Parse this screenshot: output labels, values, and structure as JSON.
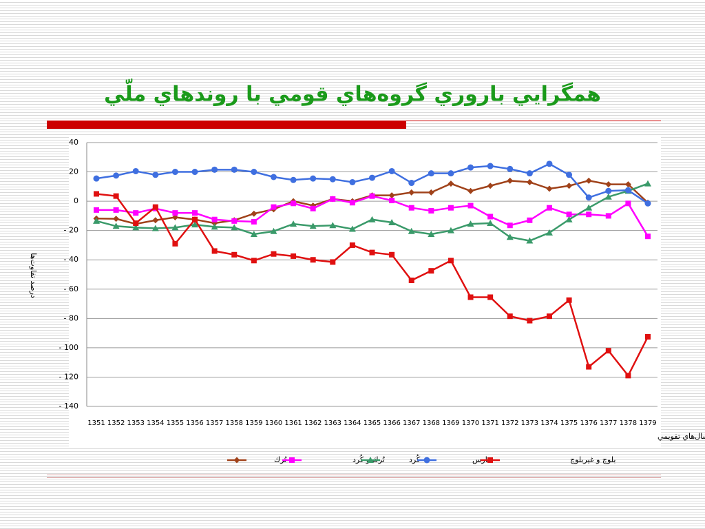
{
  "title": "همگرايي باروري گروه‌هاي قومي با روندهاي ملّي",
  "chart_data": {
    "type": "line",
    "x_label": "سال‌هاي تقويمي",
    "y_label": "درصد تفاوت‌ها",
    "categories": [
      "1351",
      "1352",
      "1353",
      "1354",
      "1355",
      "1356",
      "1357",
      "1358",
      "1359",
      "1360",
      "1361",
      "1362",
      "1363",
      "1364",
      "1365",
      "1366",
      "1367",
      "1368",
      "1369",
      "1370",
      "1371",
      "1372",
      "1373",
      "1374",
      "1375",
      "1376",
      "1377",
      "1378",
      "1379"
    ],
    "ylim": [
      -140,
      40
    ],
    "yticks": [
      40,
      20,
      0,
      {
        "value": -20,
        "label": "- 20"
      },
      {
        "value": -40,
        "label": "- 40"
      },
      {
        "value": -60,
        "label": "- 60"
      },
      {
        "value": -80,
        "label": "- 80"
      },
      {
        "value": -100,
        "label": "- 100"
      },
      {
        "value": -120,
        "label": "- 120"
      },
      {
        "value": -140,
        "label": "- 140"
      }
    ],
    "grid": true,
    "series": [
      {
        "name": "تُرك",
        "color": "#a0421a",
        "marker": "diamond",
        "values": [
          -11.8,
          -12,
          -15.5,
          -13,
          -11,
          -12.5,
          -15,
          -13,
          -8.5,
          -5.5,
          0,
          -3,
          1.5,
          0,
          4,
          4,
          6,
          6,
          12,
          7,
          10.5,
          14,
          13,
          8.5,
          10.5,
          14,
          11.5,
          11.5,
          -1
        ]
      },
      {
        "name": "تُرك و كُرد",
        "color": "#ff00ff",
        "marker": "square",
        "values": [
          -6,
          -6,
          -8,
          -5,
          -8,
          -8,
          -12.5,
          -13.5,
          -14,
          -4,
          -1.5,
          -5,
          1.5,
          -1,
          3.5,
          0.5,
          -4.5,
          -6.5,
          -4.5,
          -3,
          -10.5,
          -16.5,
          -13,
          -4.5,
          -9,
          -9,
          -10,
          -1.5,
          -24
        ]
      },
      {
        "name": "كُرد",
        "color": "#3a9a6a",
        "marker": "triangle",
        "values": [
          -13.5,
          -17,
          -18,
          -18.5,
          -18,
          -16,
          -17.5,
          -18,
          -22.5,
          -20.5,
          -15.5,
          -17,
          -16.5,
          -19,
          -12.5,
          -14.5,
          -20.5,
          -22.5,
          -20,
          -15.5,
          -15,
          -24.5,
          -27,
          -21.5,
          -12.5,
          -4.5,
          3,
          7,
          12
        ]
      },
      {
        "name": "فارس",
        "color": "#3f6fe0",
        "marker": "circle",
        "values": [
          15.5,
          17.5,
          20.5,
          18,
          20,
          20,
          21.5,
          21.5,
          20,
          16.5,
          14.5,
          15.5,
          15,
          13,
          16,
          20.5,
          12.5,
          19,
          19,
          23,
          24,
          22,
          19,
          25.5,
          18,
          2.5,
          7,
          7.5,
          -1.5
        ]
      },
      {
        "name": "بلوچ و غيربلوچ",
        "color": "#e01010",
        "marker": "square",
        "values": [
          5,
          3.5,
          -15,
          -4,
          -29,
          -12.5,
          -34,
          -36.5,
          -40.5,
          -36,
          -37.5,
          -40,
          -41.5,
          -30,
          -35,
          -36.5,
          -54,
          -47.5,
          -40.5,
          -65.5,
          -65.5,
          -78.5,
          -81.5,
          -78.5,
          -67.5,
          -113,
          -102,
          -119,
          -92.5
        ]
      }
    ]
  }
}
